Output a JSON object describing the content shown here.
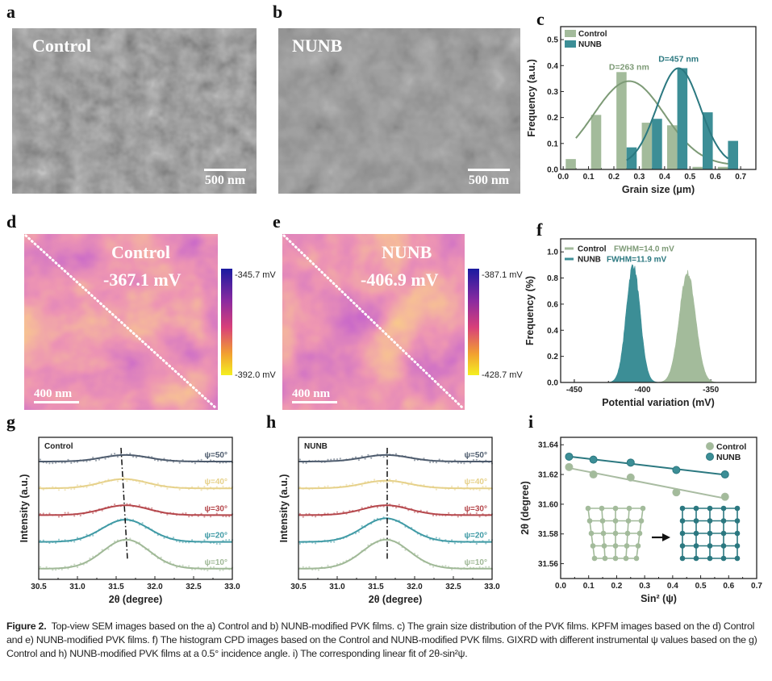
{
  "panels": {
    "a": {
      "label": "a",
      "title": "Control",
      "scale_bar": "500 nm"
    },
    "b": {
      "label": "b",
      "title": "NUNB",
      "scale_bar": "500 nm"
    },
    "d": {
      "label": "d",
      "title": "Control",
      "value": "-367.1 mV",
      "scale_bar": "400 nm",
      "cbar_max": "-345.7 mV",
      "cbar_min": "-392.0 mV"
    },
    "e": {
      "label": "e",
      "title": "NUNB",
      "value": "-406.9 mV",
      "scale_bar": "400 nm",
      "cbar_max": "-387.1 mV",
      "cbar_min": "-428.7 mV"
    }
  },
  "colors": {
    "control": "#a3bb9b",
    "control_line": "#7d9a76",
    "nunb": "#3c8e96",
    "nunb_line": "#2b7880"
  },
  "chart_data": [
    {
      "panel": "c",
      "label": "c",
      "type": "bar",
      "xlabel": "Grain size (μm)",
      "ylabel": "Frequency (a.u.)",
      "xlim": [
        -0.01,
        0.76
      ],
      "ylim": [
        0,
        0.55
      ],
      "xticks": [
        "0.0",
        "0.1",
        "0.2",
        "0.3",
        "0.4",
        "0.5",
        "0.6",
        "0.7"
      ],
      "yticks": [
        "0.0",
        "0.1",
        "0.2",
        "0.3",
        "0.4",
        "0.5"
      ],
      "legend": "top-left",
      "series": [
        {
          "name": "Control",
          "x": [
            0.03,
            0.13,
            0.23,
            0.33,
            0.43,
            0.53,
            0.63
          ],
          "values": [
            0.04,
            0.21,
            0.375,
            0.18,
            0.17,
            0.01,
            0.01
          ],
          "fit": {
            "center": 0.26,
            "peak": 0.34,
            "sigma": 0.14,
            "range": [
              0.05,
              0.65
            ],
            "label": "D=263 nm"
          }
        },
        {
          "name": "NUNB",
          "x": [
            0.27,
            0.37,
            0.47,
            0.57,
            0.67
          ],
          "values": [
            0.085,
            0.195,
            0.39,
            0.22,
            0.11
          ],
          "fit": {
            "center": 0.455,
            "peak": 0.39,
            "sigma": 0.085,
            "range": [
              0.25,
              0.65
            ],
            "label": "D=457 nm"
          }
        }
      ]
    },
    {
      "panel": "f",
      "label": "f",
      "type": "area",
      "xlabel": "Potential variation (mV)",
      "ylabel": "Frequency (%)",
      "xlim": [
        -460,
        -317
      ],
      "ylim": [
        0,
        1.1
      ],
      "xticks": [
        "-450",
        "-400",
        "-350"
      ],
      "yticks": [
        "0.0",
        "0.2",
        "0.4",
        "0.6",
        "0.8",
        "1.0"
      ],
      "legend": "top-left",
      "series": [
        {
          "name": "Control",
          "fwhm": "FWHM=14.0 mV",
          "center": -367.1,
          "peak": 0.84,
          "fwhm_mv": 14.0
        },
        {
          "name": "NUNB",
          "fwhm": "FWHM=11.9 mV",
          "center": -406.9,
          "peak": 0.9,
          "fwhm_mv": 11.9
        }
      ]
    },
    {
      "panel": "g",
      "label": "g",
      "type": "line",
      "title": "Control",
      "xlabel": "2θ (degree)",
      "ylabel": "Intensity (a.u.)",
      "xlim": [
        30.5,
        33.0
      ],
      "xticks": [
        "30.5",
        "31.0",
        "31.5",
        "32.0",
        "32.5",
        "33.0"
      ],
      "series": [
        {
          "name": "ψ=50°",
          "center": 31.62,
          "amplitude": 0.18,
          "color": "#4d5b6d"
        },
        {
          "name": "ψ=40°",
          "center": 31.6,
          "amplitude": 0.28,
          "color": "#e6d18a"
        },
        {
          "name": "ψ=30°",
          "center": 31.62,
          "amplitude": 0.3,
          "color": "#b5464b"
        },
        {
          "name": "ψ=20°",
          "center": 31.62,
          "amplitude": 0.75,
          "color": "#3f9aa5"
        },
        {
          "name": "ψ=10°",
          "center": 31.63,
          "amplitude": 1.0,
          "color": "#a0b997"
        }
      ]
    },
    {
      "panel": "h",
      "label": "h",
      "type": "line",
      "title": "NUNB",
      "xlabel": "2θ (degree)",
      "ylabel": "Intensity (a.u.)",
      "xlim": [
        30.5,
        33.0
      ],
      "xticks": [
        "30.5",
        "31.0",
        "31.5",
        "32.0",
        "32.5",
        "33.0"
      ],
      "series": [
        {
          "name": "ψ=50°",
          "center": 31.63,
          "amplitude": 0.18,
          "color": "#4d5b6d"
        },
        {
          "name": "ψ=40°",
          "center": 31.63,
          "amplitude": 0.22,
          "color": "#e6d18a"
        },
        {
          "name": "ψ=30°",
          "center": 31.63,
          "amplitude": 0.3,
          "color": "#b5464b"
        },
        {
          "name": "ψ=20°",
          "center": 31.63,
          "amplitude": 0.8,
          "color": "#3f9aa5"
        },
        {
          "name": "ψ=10°",
          "center": 31.63,
          "amplitude": 1.0,
          "color": "#a0b997"
        }
      ]
    },
    {
      "panel": "i",
      "label": "i",
      "type": "scatter",
      "xlabel": "Sin² (ψ)",
      "ylabel": "2θ (degree)",
      "xlim": [
        0,
        0.7
      ],
      "ylim": [
        31.55,
        31.645
      ],
      "xticks": [
        "0.0",
        "0.1",
        "0.2",
        "0.3",
        "0.4",
        "0.5",
        "0.6",
        "0.7"
      ],
      "yticks": [
        "31.56",
        "31.58",
        "31.60",
        "31.62",
        "31.64"
      ],
      "legend": "top-right",
      "series": [
        {
          "name": "Control",
          "x": [
            0.03,
            0.117,
            0.25,
            0.413,
            0.587
          ],
          "y": [
            31.625,
            31.62,
            31.618,
            31.608,
            31.605
          ]
        },
        {
          "name": "NUNB",
          "x": [
            0.03,
            0.117,
            0.25,
            0.413,
            0.587
          ],
          "y": [
            31.632,
            31.63,
            31.628,
            31.623,
            31.62
          ]
        }
      ]
    }
  ],
  "caption": {
    "lead": "Figure 2.",
    "text": "Top-view SEM images based on the a) Control and b) NUNB-modified PVK films. c) The grain size distribution of the PVK films. KPFM images based on the d) Control and e) NUNB-modified PVK films. f) The histogram CPD images based on the Control and NUNB-modified PVK films. GIXRD with different instrumental ψ values based on the g) Control and h) NUNB-modified PVK films at a 0.5° incidence angle. i) The corresponding linear fit of 2θ-sin²ψ."
  }
}
